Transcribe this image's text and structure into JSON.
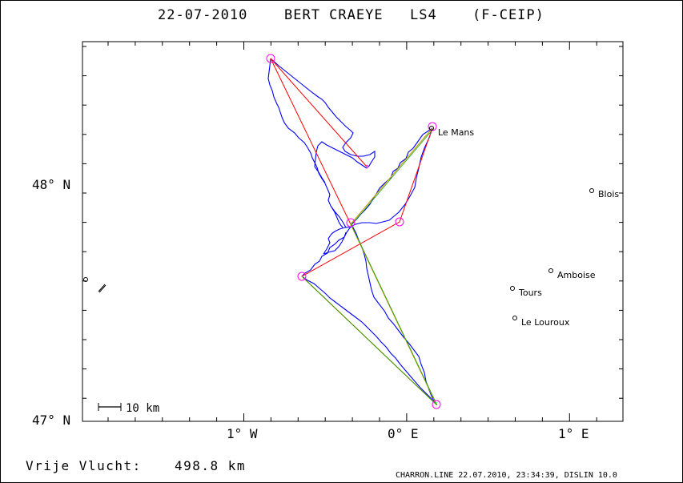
{
  "header": {
    "date": "22-07-2010",
    "pilot": "BERT CRAEYE",
    "glider": "LS4",
    "registration": "(F-CEIP)"
  },
  "footer": {
    "distance_label": "Vrije Vlucht:",
    "distance_value": "498.8 km",
    "credit": "CHARRON.LINE 22.07.2010, 23:34:39, DISLIN 10.0"
  },
  "map": {
    "axes": {
      "lat_labels": [
        "48° N",
        "47° N"
      ],
      "lon_labels": [
        "1° W",
        "0° E",
        "1° E"
      ]
    },
    "scale_bar": "10 km",
    "towns": [
      {
        "name": "Le Mans"
      },
      {
        "name": "Blois"
      },
      {
        "name": "Amboise"
      },
      {
        "name": "Tours"
      },
      {
        "name": "Le Louroux"
      }
    ],
    "colors": {
      "track": "#0000ff",
      "legs": "#ff0000",
      "optimized": "#b5b500",
      "turnpoints": "#ff00ff",
      "frame": "#000000"
    }
  }
}
